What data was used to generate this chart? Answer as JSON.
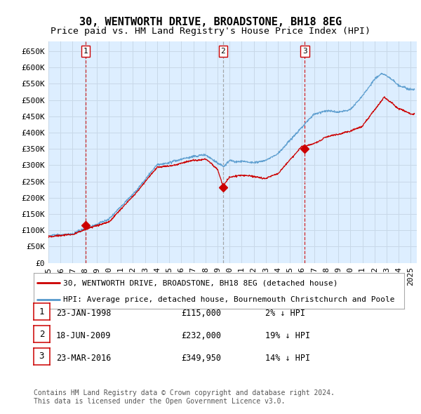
{
  "title": "30, WENTWORTH DRIVE, BROADSTONE, BH18 8EG",
  "subtitle": "Price paid vs. HM Land Registry's House Price Index (HPI)",
  "ylabel_ticks": [
    "£0",
    "£50K",
    "£100K",
    "£150K",
    "£200K",
    "£250K",
    "£300K",
    "£350K",
    "£400K",
    "£450K",
    "£500K",
    "£550K",
    "£600K",
    "£650K"
  ],
  "ytick_values": [
    0,
    50000,
    100000,
    150000,
    200000,
    250000,
    300000,
    350000,
    400000,
    450000,
    500000,
    550000,
    600000,
    650000
  ],
  "ylim": [
    0,
    680000
  ],
  "xlim_start": 1995.0,
  "xlim_end": 2025.5,
  "sale_dates": [
    1998.07,
    2009.46,
    2016.23
  ],
  "sale_prices": [
    115000,
    232000,
    349950
  ],
  "sale_labels": [
    "1",
    "2",
    "3"
  ],
  "sale_vline_styles": [
    "red_dashed",
    "gray_dashed",
    "red_dashed"
  ],
  "hpi_color": "#5599cc",
  "price_color": "#cc0000",
  "vline_red_color": "#cc0000",
  "vline_gray_color": "#999999",
  "bg_plot": "#ddeeff",
  "bg_fig": "#ffffff",
  "grid_color": "#c8d8e8",
  "legend_entry1": "30, WENTWORTH DRIVE, BROADSTONE, BH18 8EG (detached house)",
  "legend_entry2": "HPI: Average price, detached house, Bournemouth Christchurch and Poole",
  "table_rows": [
    [
      "1",
      "23-JAN-1998",
      "£115,000",
      "2% ↓ HPI"
    ],
    [
      "2",
      "18-JUN-2009",
      "£232,000",
      "19% ↓ HPI"
    ],
    [
      "3",
      "23-MAR-2016",
      "£349,950",
      "14% ↓ HPI"
    ]
  ],
  "footnote": "Contains HM Land Registry data © Crown copyright and database right 2024.\nThis data is licensed under the Open Government Licence v3.0.",
  "title_fontsize": 11,
  "subtitle_fontsize": 9.5,
  "tick_fontsize": 8,
  "legend_fontsize": 8,
  "table_fontsize": 8.5,
  "footnote_fontsize": 7
}
